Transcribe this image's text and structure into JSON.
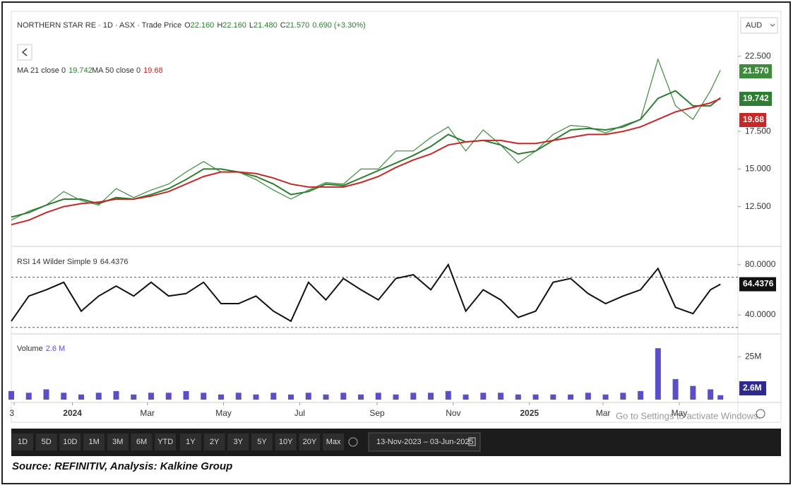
{
  "ui": {
    "symbol": "NORTHERN STAR RE · 1D · ASX · Trade Price",
    "ohlc": [
      {
        "key": "O",
        "value": "22.160"
      },
      {
        "key": "H",
        "value": "22.160"
      },
      {
        "key": "L",
        "value": "21.480"
      },
      {
        "key": "C",
        "value": "21.570"
      }
    ],
    "change": "0.690 (+3.30%)",
    "currency": "AUD",
    "ranges": [
      "1D",
      "5D",
      "10D",
      "1M",
      "3M",
      "6M",
      "YTD",
      "1Y",
      "2Y",
      "3Y",
      "5Y",
      "10Y",
      "20Y",
      "Max"
    ],
    "date_range": "13-Nov-2023 – 03-Jun-2025",
    "watermark": "Go to Settings to activate Windows.",
    "source": "Source: REFINITIV, Analysis: Kalkine Group"
  },
  "chart_data": [
    {
      "type": "line",
      "x": [
        0,
        14,
        28,
        42,
        56,
        70,
        84,
        98,
        112,
        126,
        140,
        154,
        168,
        182,
        196,
        210,
        224,
        238,
        252,
        266,
        280,
        294,
        308,
        322,
        336,
        350,
        364,
        378,
        392,
        406,
        420,
        434,
        448,
        462,
        476,
        490,
        504,
        518,
        532,
        546,
        560,
        568
      ],
      "xlim": [
        0,
        582
      ],
      "ylim": [
        9.9,
        25.3
      ],
      "yticks": [
        {
          "value": 22.5,
          "label": "22.500"
        },
        {
          "value": 17.5,
          "label": "17.500"
        },
        {
          "value": 15,
          "label": "15.000"
        },
        {
          "value": 12.5,
          "label": "12.500"
        }
      ],
      "close_label": "21.570",
      "series": [
        {
          "color": "#3c8c3c",
          "values": [
            11.6,
            12.2,
            12.6,
            13.5,
            12.9,
            12.6,
            13.7,
            13.1,
            13.6,
            14.0,
            14.8,
            15.5,
            14.8,
            14.8,
            14.3,
            13.6,
            13.0,
            13.6,
            14.1,
            14.0,
            15.0,
            15.0,
            16.2,
            16.2,
            17.1,
            17.8,
            16.2,
            17.6,
            16.6,
            15.4,
            16.2,
            17.3,
            17.9,
            17.8,
            17.4,
            17.9,
            18.3,
            22.3,
            19.2,
            18.3,
            20.2,
            21.57
          ]
        },
        {
          "name": "MA 21 close 0",
          "color": "#2e7d32",
          "values": [
            11.8,
            12.1,
            12.6,
            13.0,
            13.0,
            12.7,
            13.1,
            13.0,
            13.3,
            13.7,
            14.3,
            15.0,
            15.0,
            14.8,
            14.5,
            14.0,
            13.3,
            13.5,
            14.0,
            13.9,
            14.4,
            14.9,
            15.4,
            15.9,
            16.5,
            17.3,
            16.8,
            16.9,
            16.6,
            16.0,
            16.2,
            16.9,
            17.6,
            17.7,
            17.6,
            17.8,
            18.3,
            19.7,
            20.2,
            19.2,
            19.2,
            19.742
          ]
        },
        {
          "name": "MA 50 close 0",
          "color": "#c62828",
          "values": [
            11.3,
            11.6,
            12.1,
            12.5,
            12.7,
            12.8,
            13.0,
            13.0,
            13.2,
            13.5,
            14.0,
            14.5,
            14.8,
            14.8,
            14.7,
            14.4,
            14.0,
            13.8,
            13.8,
            13.8,
            14.1,
            14.5,
            15.1,
            15.6,
            16.0,
            16.6,
            16.8,
            16.9,
            16.9,
            16.7,
            16.7,
            16.9,
            17.1,
            17.3,
            17.3,
            17.5,
            17.8,
            18.3,
            18.8,
            19.1,
            19.4,
            19.68
          ]
        }
      ]
    },
    {
      "type": "line",
      "x": [
        0,
        14,
        28,
        42,
        56,
        70,
        84,
        98,
        112,
        126,
        140,
        154,
        168,
        182,
        196,
        210,
        224,
        238,
        252,
        266,
        280,
        294,
        308,
        322,
        336,
        350,
        364,
        378,
        392,
        406,
        420,
        434,
        448,
        462,
        476,
        490,
        504,
        518,
        532,
        546,
        560,
        568
      ],
      "xlim": [
        0,
        582
      ],
      "ylim": [
        26.5,
        94
      ],
      "yticks": [
        {
          "value": 80,
          "label": "80.0000"
        },
        {
          "value": 40,
          "label": "40.0000"
        }
      ],
      "levels": [
        70,
        30
      ],
      "series": [
        {
          "name": "RSI 14 Wilder Simple 9",
          "color": "#111111",
          "values": [
            35,
            55,
            60,
            66,
            43,
            55,
            63,
            55,
            66,
            55,
            57,
            66,
            49,
            49,
            55,
            43,
            35,
            66,
            52,
            69,
            60,
            52,
            69,
            72,
            60,
            80,
            43,
            60,
            52,
            38,
            43,
            66,
            69,
            57,
            49,
            55,
            60,
            77,
            46,
            41,
            60,
            64.4376
          ]
        }
      ]
    },
    {
      "type": "bar",
      "x": [
        0,
        14,
        28,
        42,
        56,
        70,
        84,
        98,
        112,
        126,
        140,
        154,
        168,
        182,
        196,
        210,
        224,
        238,
        252,
        266,
        280,
        294,
        308,
        322,
        336,
        350,
        364,
        378,
        392,
        406,
        420,
        434,
        448,
        462,
        476,
        490,
        504,
        518,
        532,
        546,
        560,
        568
      ],
      "xlim": [
        0,
        582
      ],
      "ylim": [
        0,
        36.25
      ],
      "xticks": [
        {
          "value": 0,
          "label": "3"
        },
        {
          "value": 49,
          "label": "2024"
        },
        {
          "value": 109,
          "label": "Mar"
        },
        {
          "value": 170,
          "label": "May"
        },
        {
          "value": 231,
          "label": "Jul"
        },
        {
          "value": 293,
          "label": "Sep"
        },
        {
          "value": 354,
          "label": "Nov"
        },
        {
          "value": 415,
          "label": "2025"
        },
        {
          "value": 474,
          "label": "Mar"
        },
        {
          "value": 535,
          "label": "May"
        }
      ],
      "yticks": [
        {
          "value": 25,
          "label": "25M"
        }
      ],
      "last_label": "2.6 M",
      "last_box_label": "2.6M",
      "series": [
        {
          "name": "Volume",
          "color": "#5b4fc7",
          "values": [
            5,
            4,
            6,
            4,
            3,
            4,
            5,
            3,
            4,
            4,
            5,
            4,
            3,
            4,
            3,
            4,
            3,
            4,
            3,
            4,
            3,
            4,
            3,
            4,
            4,
            5,
            3,
            4,
            4,
            3,
            3,
            3,
            3,
            4,
            3,
            4,
            5,
            30,
            12,
            8,
            6,
            2.6
          ]
        }
      ]
    }
  ]
}
